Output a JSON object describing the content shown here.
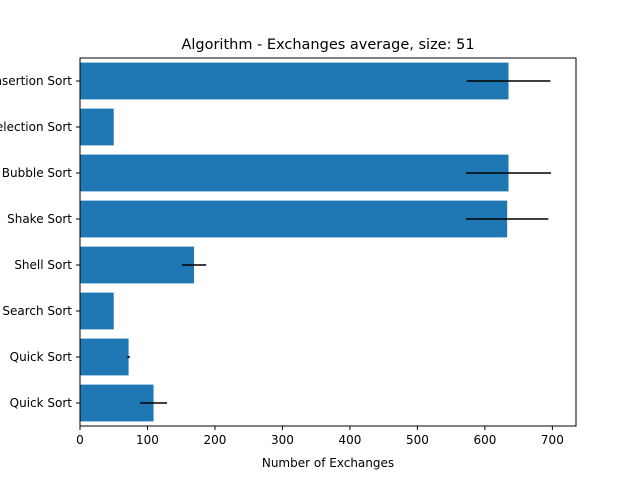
{
  "chart_data": {
    "type": "bar",
    "orientation": "horizontal",
    "title": "Algorithm - Exchanges average, size: 51",
    "xlabel": "Number of Exchanges",
    "ylabel": "",
    "categories": [
      "Insertion Sort",
      "Selection Sort",
      "Bubble Sort",
      "Shake Sort",
      "Shell Sort",
      "Binary Search Sort",
      "Quick Sort",
      "Quick Sort"
    ],
    "values": [
      635,
      50,
      635,
      633,
      169,
      50,
      72,
      109
    ],
    "error": [
      62,
      0,
      63,
      61,
      18,
      0,
      2,
      20
    ],
    "xlim": [
      0,
      735
    ],
    "xticks": [
      0,
      100,
      200,
      300,
      400,
      500,
      600,
      700
    ],
    "bar_color": "#1f77b4",
    "error_color": "#000000",
    "grid": false,
    "legend": "none"
  }
}
